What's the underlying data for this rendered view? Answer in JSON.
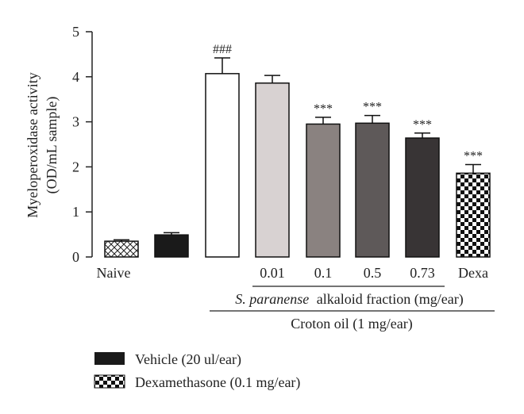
{
  "chart_data": {
    "type": "bar",
    "ylabel_line1": "Myeloperoxidase activity",
    "ylabel_line2": "(OD/mL sample)",
    "ylim": [
      0,
      5
    ],
    "yticks": [
      "0",
      "1",
      "2",
      "3",
      "4",
      "5"
    ],
    "grid": false,
    "bars": [
      {
        "id": "naive",
        "value": 0.35,
        "error": 0.03,
        "fill": "crosshatch",
        "label": "",
        "annotation": ""
      },
      {
        "id": "vehicle",
        "value": 0.49,
        "error": 0.05,
        "fill": "#1a1a1a",
        "label": "",
        "annotation": ""
      },
      {
        "id": "croton",
        "value": 4.07,
        "error": 0.35,
        "fill": "#ffffff",
        "label": "",
        "annotation": "###"
      },
      {
        "id": "dose-0.01",
        "value": 3.86,
        "error": 0.17,
        "fill": "#d8d2d2",
        "label": "0.01",
        "annotation": ""
      },
      {
        "id": "dose-0.1",
        "value": 2.95,
        "error": 0.15,
        "fill": "#8a8280",
        "label": "0.1",
        "annotation": "***"
      },
      {
        "id": "dose-0.5",
        "value": 2.97,
        "error": 0.17,
        "fill": "#5e5959",
        "label": "0.5",
        "annotation": "***"
      },
      {
        "id": "dose-0.73",
        "value": 2.64,
        "error": 0.11,
        "fill": "#383435",
        "label": "0.73",
        "annotation": "***"
      },
      {
        "id": "dexa",
        "value": 1.86,
        "error": 0.19,
        "fill": "checker",
        "label": "Dexa",
        "annotation": "***"
      }
    ],
    "naive_label": "Naive",
    "bracket_fraction_label": "alkaloid fraction (mg/ear)",
    "bracket_fraction_species": "S. paranense",
    "bracket_croton_label": "Croton oil (1 mg/ear)",
    "legend": [
      {
        "label": "Vehicle (20 ul/ear)",
        "fill": "#1a1a1a"
      },
      {
        "label": "Dexamethasone (0.1 mg/ear)",
        "fill": "checker"
      }
    ]
  }
}
